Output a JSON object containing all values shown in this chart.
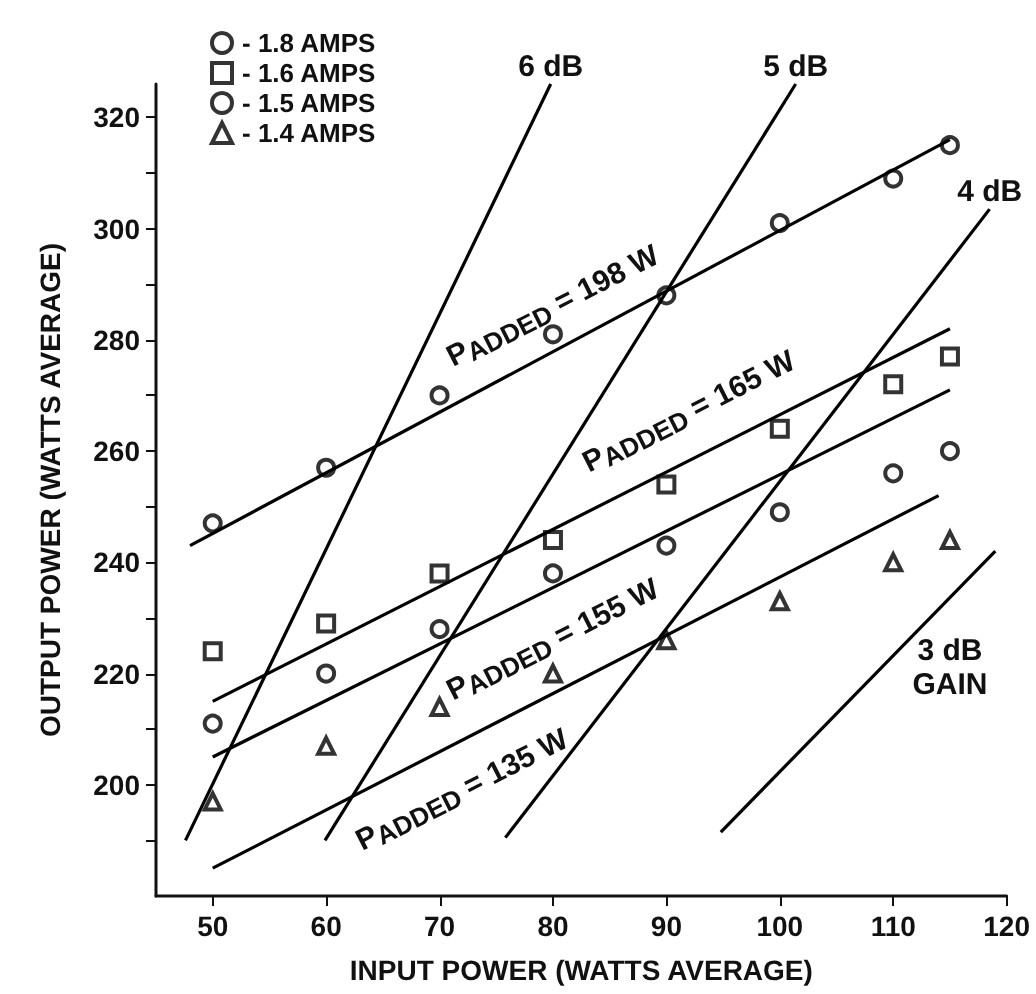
{
  "chart_data": {
    "type": "scatter",
    "xlabel": "INPUT POWER (WATTS AVERAGE)",
    "ylabel": "OUTPUT POWER (WATTS AVERAGE)",
    "xlim": [
      45,
      120
    ],
    "xticks": [
      50,
      60,
      70,
      80,
      90,
      100,
      110,
      120
    ],
    "ylim": [
      180,
      326
    ],
    "yticks": [
      {
        "value": 190,
        "label": null
      },
      200,
      {
        "value": 210,
        "label": null
      },
      220,
      {
        "value": 230,
        "label": null
      },
      240,
      {
        "value": 250,
        "label": null
      },
      260,
      {
        "value": 270,
        "label": null
      },
      280,
      {
        "value": 290,
        "label": null
      },
      300,
      {
        "value": 310,
        "label": null
      },
      320
    ],
    "grid": false,
    "legend": "top left",
    "series": [
      {
        "name": "- 1.8 AMPS",
        "color": "#000000",
        "marker": "circle",
        "x": [
          50,
          60,
          70,
          80,
          90,
          100,
          110,
          115
        ],
        "values": [
          247,
          257,
          270,
          281,
          288,
          301,
          309,
          315
        ]
      },
      {
        "name": "- 1.6 AMPS",
        "color": "#000000",
        "marker": "square",
        "x": [
          50,
          60,
          70,
          80,
          90,
          100,
          110,
          115
        ],
        "values": [
          224,
          229,
          238,
          244,
          254,
          264,
          272,
          277
        ]
      },
      {
        "name": "- 1.5 AMPS",
        "color": "#000000",
        "marker": "circle",
        "x": [
          50,
          60,
          70,
          80,
          90,
          100,
          110,
          115
        ],
        "values": [
          211,
          220,
          228,
          238,
          243,
          249,
          256,
          260
        ]
      },
      {
        "name": "- 1.4 AMPS",
        "color": "#000000",
        "marker": "triangle",
        "x": [
          50,
          60,
          70,
          80,
          90,
          100,
          110,
          115
        ],
        "values": [
          197,
          207,
          214,
          220,
          226,
          233,
          240,
          244
        ]
      },
      {
        "type": "line",
        "color": "#000000",
        "marker": "none",
        "x": [
          48,
          115
        ],
        "values": [
          243,
          316
        ]
      },
      {
        "type": "line",
        "color": "#000000",
        "marker": "none",
        "x": [
          50,
          115
        ],
        "values": [
          215,
          282
        ]
      },
      {
        "type": "line",
        "color": "#000000",
        "marker": "none",
        "x": [
          50,
          115
        ],
        "values": [
          205,
          271
        ]
      },
      {
        "type": "line",
        "color": "#000000",
        "marker": "none",
        "x": [
          50,
          114
        ],
        "values": [
          185,
          252
        ]
      },
      {
        "type": "line",
        "color": "#000000",
        "marker": "none",
        "x": [
          47.6,
          79.8
        ],
        "values": [
          190,
          326
        ]
      },
      {
        "type": "line",
        "color": "#000000",
        "marker": "none",
        "x": [
          59.9,
          101.4
        ],
        "values": [
          190,
          326
        ]
      },
      {
        "type": "line",
        "color": "#000000",
        "marker": "none",
        "x": [
          75.8,
          118.5
        ],
        "values": [
          190.5,
          303.5
        ]
      },
      {
        "type": "line",
        "color": "#000000",
        "marker": "none",
        "x": [
          94.8,
          119
        ],
        "values": [
          191.5,
          242
        ]
      }
    ],
    "annotations": [
      "P$_{ADDED}$ = 198 W",
      "P$_{ADDED}$ = 165 W",
      "P$_{ADDED}$ = 155 W",
      "P$_{ADDED}$ = 135 W",
      {
        "text": "6 dB",
        "x": 79.8,
        "y": 326
      },
      {
        "text": "5 dB",
        "x": 101.4,
        "y": 326
      },
      {
        "text": "4 dB",
        "x": 118.5,
        "y": 303.5
      },
      "3 dB\nGAIN"
    ]
  }
}
